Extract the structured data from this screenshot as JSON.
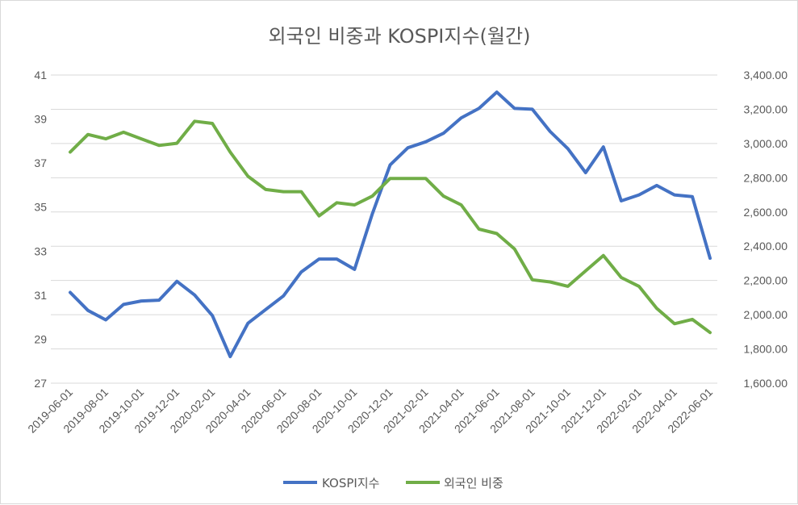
{
  "chart_data": {
    "type": "line",
    "title": "외국인 비중과 KOSPI지수(월간)",
    "x": [
      "2019-06-01",
      "2019-07-01",
      "2019-08-01",
      "2019-09-01",
      "2019-10-01",
      "2019-11-01",
      "2019-12-01",
      "2020-01-01",
      "2020-02-01",
      "2020-03-01",
      "2020-04-01",
      "2020-05-01",
      "2020-06-01",
      "2020-07-01",
      "2020-08-01",
      "2020-09-01",
      "2020-10-01",
      "2020-11-01",
      "2020-12-01",
      "2021-01-01",
      "2021-02-01",
      "2021-03-01",
      "2021-04-01",
      "2021-05-01",
      "2021-06-01",
      "2021-07-01",
      "2021-08-01",
      "2021-09-01",
      "2021-10-01",
      "2021-11-01",
      "2021-12-01",
      "2022-01-01",
      "2022-02-01",
      "2022-03-01",
      "2022-04-01",
      "2022-05-01",
      "2022-06-01"
    ],
    "x_tick_labels": [
      "2019-06-01",
      "2019-08-01",
      "2019-10-01",
      "2019-12-01",
      "2020-02-01",
      "2020-04-01",
      "2020-06-01",
      "2020-08-01",
      "2020-10-01",
      "2020-12-01",
      "2021-02-01",
      "2021-04-01",
      "2021-06-01",
      "2021-08-01",
      "2021-10-01",
      "2021-12-01",
      "2022-02-01",
      "2022-04-01",
      "2022-06-01"
    ],
    "y_left": {
      "ticks": [
        "41",
        "39",
        "37",
        "35",
        "33",
        "31",
        "29",
        "27"
      ],
      "ylim": [
        27,
        41
      ]
    },
    "y_right": {
      "ticks": [
        "3,400.00",
        "3,200.00",
        "3,000.00",
        "2,800.00",
        "2,600.00",
        "2,400.00",
        "2,200.00",
        "2,000.00",
        "1,800.00",
        "1,600.00"
      ],
      "ylim": [
        1600,
        3400
      ]
    },
    "grid": true,
    "legend_position": "bottom",
    "series": [
      {
        "name": "KOSPI지수",
        "axis": "right",
        "color": "#4472c4",
        "values": [
          2130,
          2025,
          1970,
          2060,
          2080,
          2085,
          2195,
          2115,
          1995,
          1755,
          1950,
          2030,
          2110,
          2250,
          2325,
          2325,
          2265,
          2590,
          2875,
          2975,
          3010,
          3060,
          3150,
          3205,
          3300,
          3205,
          3200,
          3070,
          2970,
          2830,
          2980,
          2665,
          2700,
          2755,
          2700,
          2690,
          2330
        ]
      },
      {
        "name": "외국인 비중",
        "axis": "left",
        "color": "#70ad47",
        "values": [
          37.5,
          38.3,
          38.1,
          38.4,
          38.1,
          37.8,
          37.9,
          38.9,
          38.8,
          37.5,
          36.4,
          35.8,
          35.7,
          35.7,
          34.6,
          35.2,
          35.1,
          35.5,
          36.3,
          36.3,
          36.3,
          35.5,
          35.1,
          34.0,
          33.8,
          33.1,
          31.7,
          31.6,
          31.4,
          32.1,
          32.8,
          31.8,
          31.4,
          30.4,
          29.7,
          29.9,
          29.3
        ]
      }
    ]
  }
}
